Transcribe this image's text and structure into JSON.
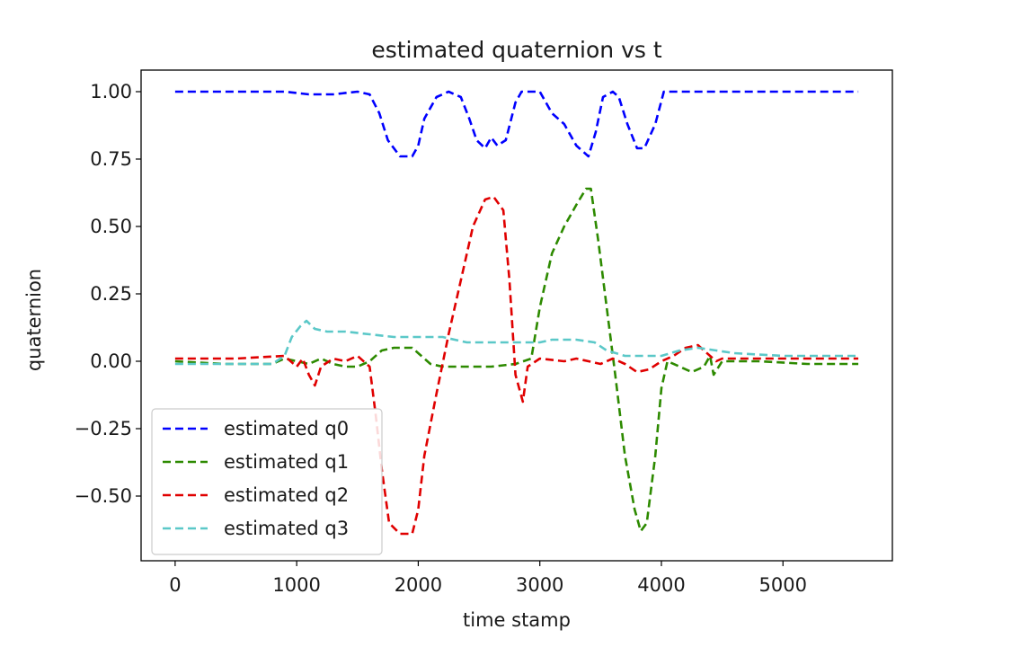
{
  "chart_data": {
    "type": "line",
    "title": "estimated quaternion vs t",
    "xlabel": "time stamp",
    "ylabel": "quaternion",
    "xlim": [
      -280,
      5900
    ],
    "ylim": [
      -0.74,
      1.08
    ],
    "xticks": [
      0,
      1000,
      2000,
      3000,
      4000,
      5000
    ],
    "xtick_labels": [
      "0",
      "1000",
      "2000",
      "3000",
      "4000",
      "5000"
    ],
    "yticks": [
      1.0,
      0.75,
      0.5,
      0.25,
      0.0,
      -0.25,
      -0.5
    ],
    "ytick_labels": [
      "1.00",
      "0.75",
      "0.50",
      "0.25",
      "0.00",
      "−0.25",
      "−0.50"
    ],
    "grid": false,
    "legend_position": "lower-left",
    "line_style": "dashed",
    "series": [
      {
        "name": "estimated q0",
        "color": "#0000ff",
        "points": [
          [
            0,
            1.0
          ],
          [
            500,
            1.0
          ],
          [
            900,
            1.0
          ],
          [
            1100,
            0.99
          ],
          [
            1300,
            0.99
          ],
          [
            1500,
            1.0
          ],
          [
            1600,
            0.99
          ],
          [
            1680,
            0.92
          ],
          [
            1750,
            0.82
          ],
          [
            1850,
            0.76
          ],
          [
            1950,
            0.76
          ],
          [
            2000,
            0.8
          ],
          [
            2050,
            0.9
          ],
          [
            2150,
            0.98
          ],
          [
            2250,
            1.0
          ],
          [
            2350,
            0.98
          ],
          [
            2420,
            0.9
          ],
          [
            2480,
            0.82
          ],
          [
            2550,
            0.79
          ],
          [
            2600,
            0.83
          ],
          [
            2650,
            0.8
          ],
          [
            2720,
            0.82
          ],
          [
            2800,
            0.96
          ],
          [
            2850,
            1.0
          ],
          [
            3000,
            1.0
          ],
          [
            3100,
            0.92
          ],
          [
            3200,
            0.88
          ],
          [
            3300,
            0.8
          ],
          [
            3400,
            0.76
          ],
          [
            3460,
            0.85
          ],
          [
            3520,
            0.98
          ],
          [
            3600,
            1.0
          ],
          [
            3650,
            0.98
          ],
          [
            3720,
            0.88
          ],
          [
            3800,
            0.79
          ],
          [
            3860,
            0.79
          ],
          [
            3950,
            0.88
          ],
          [
            4020,
            1.0
          ],
          [
            4200,
            1.0
          ],
          [
            4500,
            1.0
          ],
          [
            5000,
            1.0
          ],
          [
            5620,
            1.0
          ]
        ]
      },
      {
        "name": "estimated q1",
        "color": "#2d8a00",
        "points": [
          [
            0,
            0.0
          ],
          [
            400,
            -0.01
          ],
          [
            800,
            -0.01
          ],
          [
            900,
            0.01
          ],
          [
            1000,
            0.0
          ],
          [
            1100,
            -0.01
          ],
          [
            1200,
            0.01
          ],
          [
            1300,
            -0.01
          ],
          [
            1400,
            -0.02
          ],
          [
            1500,
            -0.02
          ],
          [
            1600,
            0.0
          ],
          [
            1700,
            0.04
          ],
          [
            1800,
            0.05
          ],
          [
            1950,
            0.05
          ],
          [
            2000,
            0.03
          ],
          [
            2100,
            -0.01
          ],
          [
            2200,
            -0.02
          ],
          [
            2400,
            -0.02
          ],
          [
            2600,
            -0.02
          ],
          [
            2800,
            -0.01
          ],
          [
            2930,
            0.01
          ],
          [
            3000,
            0.2
          ],
          [
            3100,
            0.4
          ],
          [
            3200,
            0.5
          ],
          [
            3300,
            0.58
          ],
          [
            3380,
            0.64
          ],
          [
            3420,
            0.64
          ],
          [
            3480,
            0.45
          ],
          [
            3550,
            0.2
          ],
          [
            3620,
            -0.05
          ],
          [
            3700,
            -0.35
          ],
          [
            3780,
            -0.55
          ],
          [
            3830,
            -0.63
          ],
          [
            3880,
            -0.6
          ],
          [
            3950,
            -0.35
          ],
          [
            4000,
            -0.1
          ],
          [
            4050,
            0.0
          ],
          [
            4150,
            -0.02
          ],
          [
            4250,
            -0.04
          ],
          [
            4350,
            -0.02
          ],
          [
            4400,
            0.02
          ],
          [
            4430,
            -0.05
          ],
          [
            4500,
            0.0
          ],
          [
            4800,
            0.0
          ],
          [
            5200,
            -0.01
          ],
          [
            5620,
            -0.01
          ]
        ]
      },
      {
        "name": "estimated q2",
        "color": "#e00000",
        "points": [
          [
            0,
            0.01
          ],
          [
            500,
            0.01
          ],
          [
            900,
            0.02
          ],
          [
            1000,
            -0.02
          ],
          [
            1050,
            0.01
          ],
          [
            1100,
            -0.05
          ],
          [
            1150,
            -0.09
          ],
          [
            1200,
            -0.02
          ],
          [
            1300,
            0.01
          ],
          [
            1400,
            0.0
          ],
          [
            1500,
            0.02
          ],
          [
            1600,
            -0.02
          ],
          [
            1650,
            -0.2
          ],
          [
            1700,
            -0.4
          ],
          [
            1760,
            -0.6
          ],
          [
            1850,
            -0.64
          ],
          [
            1950,
            -0.64
          ],
          [
            2000,
            -0.55
          ],
          [
            2050,
            -0.35
          ],
          [
            2150,
            -0.12
          ],
          [
            2250,
            0.1
          ],
          [
            2350,
            0.3
          ],
          [
            2450,
            0.5
          ],
          [
            2550,
            0.6
          ],
          [
            2620,
            0.61
          ],
          [
            2700,
            0.56
          ],
          [
            2750,
            0.3
          ],
          [
            2800,
            -0.05
          ],
          [
            2860,
            -0.15
          ],
          [
            2900,
            -0.02
          ],
          [
            3000,
            0.01
          ],
          [
            3200,
            0.0
          ],
          [
            3300,
            0.01
          ],
          [
            3500,
            -0.01
          ],
          [
            3600,
            0.01
          ],
          [
            3700,
            -0.01
          ],
          [
            3800,
            -0.04
          ],
          [
            3900,
            -0.03
          ],
          [
            4000,
            0.0
          ],
          [
            4100,
            0.02
          ],
          [
            4200,
            0.05
          ],
          [
            4300,
            0.06
          ],
          [
            4400,
            0.02
          ],
          [
            4450,
            0.0
          ],
          [
            4500,
            0.01
          ],
          [
            5000,
            0.01
          ],
          [
            5620,
            0.01
          ]
        ]
      },
      {
        "name": "estimated q3",
        "color": "#5bc8c8",
        "points": [
          [
            0,
            -0.01
          ],
          [
            400,
            -0.01
          ],
          [
            800,
            -0.01
          ],
          [
            900,
            0.02
          ],
          [
            960,
            0.09
          ],
          [
            1030,
            0.13
          ],
          [
            1080,
            0.15
          ],
          [
            1150,
            0.12
          ],
          [
            1250,
            0.11
          ],
          [
            1400,
            0.11
          ],
          [
            1600,
            0.1
          ],
          [
            1800,
            0.09
          ],
          [
            2000,
            0.09
          ],
          [
            2200,
            0.09
          ],
          [
            2400,
            0.07
          ],
          [
            2600,
            0.07
          ],
          [
            2800,
            0.07
          ],
          [
            3000,
            0.07
          ],
          [
            3100,
            0.08
          ],
          [
            3300,
            0.08
          ],
          [
            3450,
            0.07
          ],
          [
            3550,
            0.04
          ],
          [
            3700,
            0.02
          ],
          [
            3900,
            0.02
          ],
          [
            4000,
            0.02
          ],
          [
            4150,
            0.04
          ],
          [
            4300,
            0.05
          ],
          [
            4450,
            0.04
          ],
          [
            4600,
            0.03
          ],
          [
            5000,
            0.02
          ],
          [
            5620,
            0.02
          ]
        ]
      }
    ]
  }
}
